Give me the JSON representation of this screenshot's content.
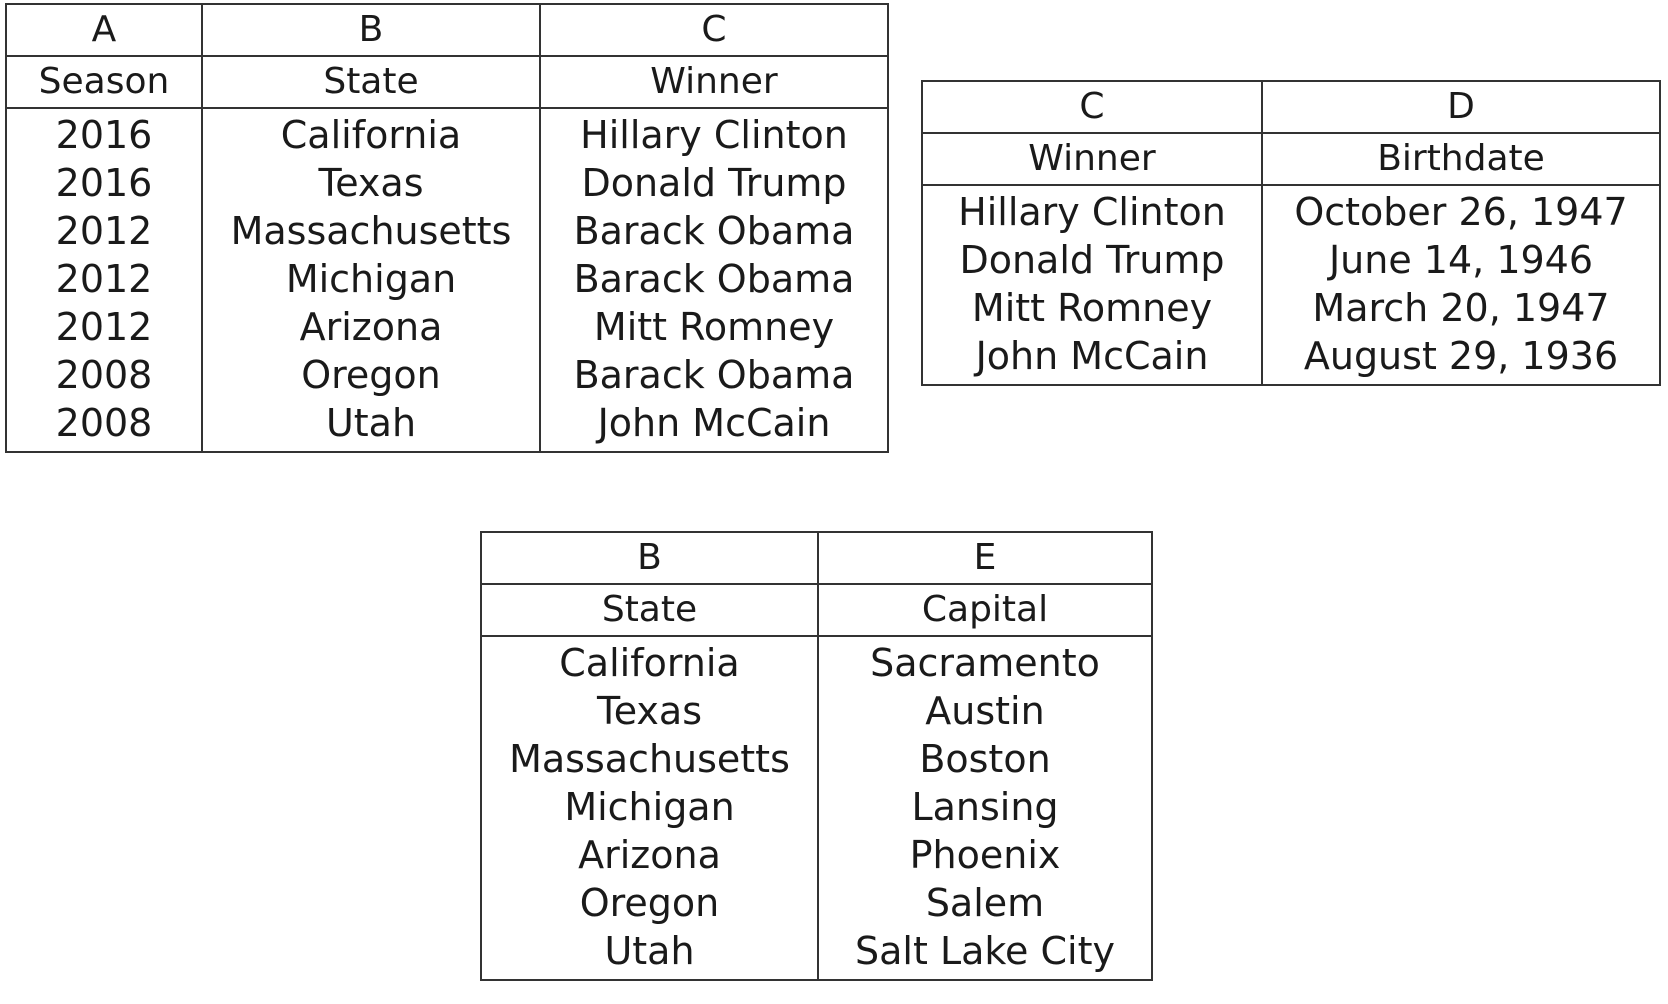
{
  "tables": [
    {
      "columns": [
        {
          "letter": "A",
          "header": "Season"
        },
        {
          "letter": "B",
          "header": "State"
        },
        {
          "letter": "C",
          "header": "Winner"
        }
      ],
      "rows": [
        [
          "2016",
          "California",
          "Hillary Clinton"
        ],
        [
          "2016",
          "Texas",
          "Donald Trump"
        ],
        [
          "2012",
          "Massachusetts",
          "Barack Obama"
        ],
        [
          "2012",
          "Michigan",
          "Barack Obama"
        ],
        [
          "2012",
          "Arizona",
          "Mitt Romney"
        ],
        [
          "2008",
          "Oregon",
          "Barack Obama"
        ],
        [
          "2008",
          "Utah",
          "John McCain"
        ]
      ]
    },
    {
      "columns": [
        {
          "letter": "C",
          "header": "Winner"
        },
        {
          "letter": "D",
          "header": "Birthdate"
        }
      ],
      "rows": [
        [
          "Hillary Clinton",
          "October 26, 1947"
        ],
        [
          "Donald Trump",
          "June 14, 1946"
        ],
        [
          "Mitt Romney",
          "March 20, 1947"
        ],
        [
          "John McCain",
          "August 29, 1936"
        ]
      ]
    },
    {
      "columns": [
        {
          "letter": "B",
          "header": "State"
        },
        {
          "letter": "E",
          "header": "Capital"
        }
      ],
      "rows": [
        [
          "California",
          "Sacramento"
        ],
        [
          "Texas",
          "Austin"
        ],
        [
          "Massachusetts",
          "Boston"
        ],
        [
          "Michigan",
          "Lansing"
        ],
        [
          "Arizona",
          "Phoenix"
        ],
        [
          "Oregon",
          "Salem"
        ],
        [
          "Utah",
          "Salt Lake City"
        ]
      ]
    }
  ]
}
